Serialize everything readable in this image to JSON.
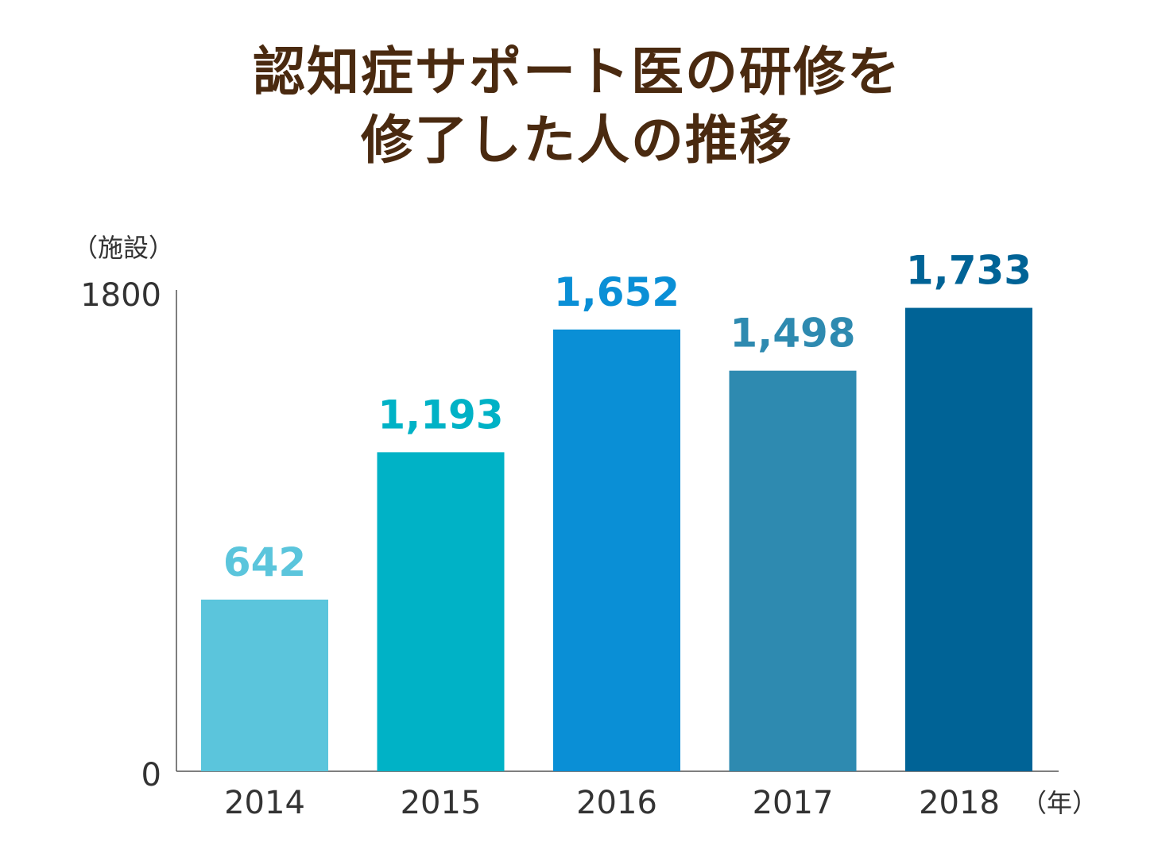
{
  "title_lines": [
    "認知症サポート医の研修を",
    "修了した人の推移"
  ],
  "chart_data": {
    "type": "bar",
    "title": "認知症サポート医の研修を修了した人の推移",
    "categories": [
      "2014",
      "2015",
      "2016",
      "2017",
      "2018"
    ],
    "values": [
      642,
      1193,
      1652,
      1498,
      1733
    ],
    "value_labels": [
      "642",
      "1,193",
      "1,652",
      "1,498",
      "1,733"
    ],
    "colors": [
      "#5bc5dc",
      "#00b2c6",
      "#0a8fd6",
      "#2e8ab0",
      "#006396"
    ],
    "ylabel": "（施設）",
    "xlabel": "（年）",
    "ylim": [
      0,
      1800
    ],
    "yticks": [
      "0",
      "1800"
    ],
    "grid": false,
    "legend": "none"
  }
}
